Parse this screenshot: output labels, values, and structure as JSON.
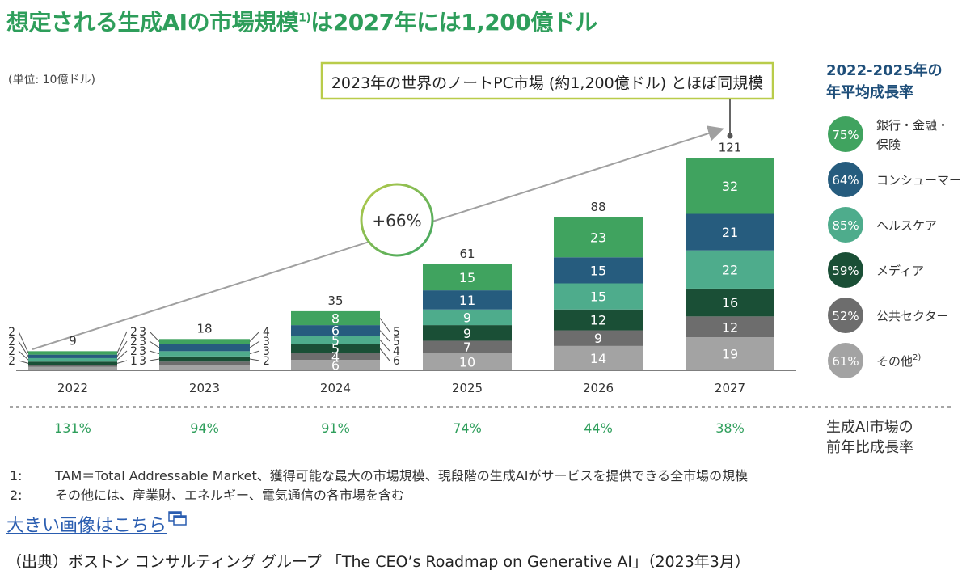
{
  "title": {
    "main": "想定される生成AIの市場規模",
    "sup": "1)",
    "rest": "は2027年には1,200億ドル"
  },
  "unit_label": "(単位: 10億ドル)",
  "callout_text": "2023年の世界のノートPC市場 (約1,200億ドル) とほぼ同規模",
  "growth_bubble": "+66%",
  "cagr_header": [
    "2022-2025年の",
    "年平均成長率"
  ],
  "yoy_label": [
    "生成AI市場の",
    "前年比成長率"
  ],
  "footnotes": [
    {
      "num": "1:",
      "text": "TAM＝Total Addressable Market、獲得可能な最大の市場規模、現段階の生成AIがサービスを提供できる全市場の規模"
    },
    {
      "num": "2:",
      "text": "その他には、産業財、エネルギー、電気通信の各市場を含む"
    }
  ],
  "link_text": "大きい画像はこちら",
  "source_text": "（出典）ボストン コンサルティング グループ 「The CEO’s Roadmap on Generative AI」（2023年3月）",
  "colors": {
    "title": "#2e9e5b",
    "banking": "#40a35f",
    "consumer": "#265c7e",
    "healthcare": "#4eac8c",
    "media": "#1a4f36",
    "public": "#6d6d6d",
    "other": "#a3a3a3"
  },
  "chart_data": {
    "type": "bar",
    "stacked": true,
    "categories": [
      "2022",
      "2023",
      "2024",
      "2025",
      "2026",
      "2027"
    ],
    "totals": [
      9,
      18,
      35,
      61,
      88,
      121
    ],
    "yoy_growth": [
      "131%",
      "94%",
      "91%",
      "74%",
      "44%",
      "38%"
    ],
    "series": [
      {
        "name": "その他",
        "sup": "2)",
        "cagr": "61%",
        "color": "#a3a3a3",
        "values": [
          2,
          3,
          6,
          10,
          14,
          19
        ]
      },
      {
        "name": "公共セクター",
        "cagr": "52%",
        "color": "#6d6d6d",
        "values": [
          1,
          2,
          4,
          7,
          9,
          12
        ]
      },
      {
        "name": "メディア",
        "cagr": "59%",
        "color": "#1a4f36",
        "values": [
          2,
          3,
          5,
          9,
          12,
          16
        ]
      },
      {
        "name": "ヘルスケア",
        "cagr": "85%",
        "color": "#4eac8c",
        "values": [
          2,
          3,
          5,
          9,
          15,
          22
        ]
      },
      {
        "name": "コンシューマー",
        "cagr": "64%",
        "color": "#265c7e",
        "values": [
          2,
          4,
          6,
          11,
          15,
          21
        ]
      },
      {
        "name": "銀行・金融・保険",
        "name_lines": [
          "銀行・金融・",
          "保険"
        ],
        "cagr": "75%",
        "color": "#40a35f",
        "values": [
          2,
          3,
          8,
          15,
          23,
          32
        ]
      }
    ],
    "side_labels_left": {
      "2022": [
        "2",
        "2",
        "2",
        "2"
      ],
      "2023": [
        "3",
        "3",
        "3",
        "3"
      ]
    },
    "side_labels_right": {
      "2022": [
        "2",
        "2",
        "2",
        "1"
      ],
      "2023": [
        "4",
        "3",
        "3",
        "2"
      ],
      "2024": [
        "5",
        "5",
        "4",
        "6"
      ]
    }
  }
}
